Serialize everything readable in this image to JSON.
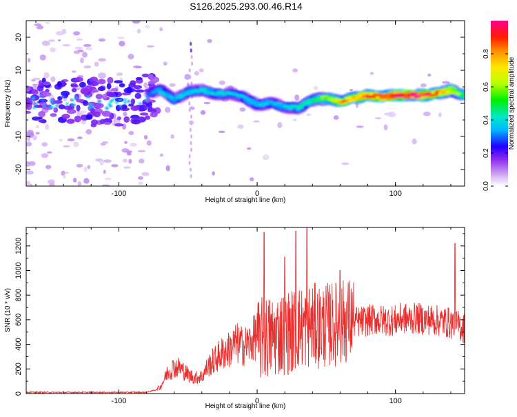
{
  "chart_data": [
    {
      "type": "heatmap",
      "title": "S126.2025.293.00.46.R14",
      "xlabel": "Height of straight line (km)",
      "ylabel": "Frequency (Hz)",
      "xlim": [
        -167,
        150
      ],
      "ylim": [
        -25,
        25
      ],
      "xticks": [
        -100,
        0,
        100
      ],
      "yticks": [
        -20,
        -10,
        0,
        10,
        20
      ],
      "colorbar": {
        "label": "Normalized spectral amplitude",
        "range": [
          0,
          1
        ],
        "ticks": [
          "0.0",
          "0.2",
          "0.4",
          "0.6",
          "0.8"
        ],
        "tick_values": [
          0.0,
          0.2,
          0.4,
          0.6,
          0.8
        ]
      },
      "ridge": {
        "description": "peak frequency track vs height",
        "x": [
          -167,
          -150,
          -130,
          -110,
          -90,
          -75,
          -70,
          -60,
          -50,
          -40,
          -30,
          -20,
          -10,
          0,
          10,
          20,
          30,
          40,
          50,
          60,
          70,
          80,
          90,
          100,
          110,
          120,
          130,
          140,
          148
        ],
        "y": [
          0.0,
          0.5,
          0.5,
          0.0,
          0.5,
          3.5,
          4.0,
          1.0,
          3.5,
          4.0,
          3.0,
          3.0,
          2.0,
          -0.5,
          0.0,
          -1.0,
          -1.5,
          1.0,
          1.5,
          0.5,
          1.5,
          2.5,
          2.0,
          2.5,
          2.5,
          2.5,
          3.0,
          4.0,
          2.5
        ],
        "amplitude": [
          0.15,
          0.15,
          0.15,
          0.15,
          0.15,
          0.25,
          0.3,
          0.28,
          0.3,
          0.3,
          0.3,
          0.3,
          0.28,
          0.3,
          0.3,
          0.3,
          0.35,
          0.4,
          0.55,
          0.7,
          0.75,
          0.8,
          0.85,
          0.9,
          0.9,
          0.85,
          0.75,
          0.6,
          0.45
        ]
      }
    },
    {
      "type": "line",
      "title": "",
      "xlabel": "Height of straight line (km)",
      "ylabel": "SNR (10 * v/v)",
      "xlim": [
        -167,
        150
      ],
      "ylim": [
        0,
        1350
      ],
      "xticks": [
        -100,
        0,
        100
      ],
      "yticks": [
        0,
        200,
        400,
        600,
        800,
        1000,
        1200
      ],
      "series": [
        {
          "name": "SNR",
          "color": "#e8302f",
          "x": [
            -167,
            -140,
            -110,
            -80,
            -70,
            -65,
            -60,
            -55,
            -50,
            -45,
            -40,
            -35,
            -30,
            -25,
            -20,
            -15,
            -10,
            -5,
            0,
            5,
            10,
            15,
            20,
            25,
            30,
            35,
            40,
            45,
            50,
            55,
            60,
            65,
            70,
            75,
            80,
            85,
            90,
            95,
            100,
            105,
            110,
            115,
            120,
            125,
            130,
            135,
            140,
            145,
            150
          ],
          "y": [
            10,
            10,
            10,
            10,
            40,
            130,
            170,
            160,
            120,
            100,
            110,
            180,
            220,
            260,
            280,
            320,
            300,
            320,
            380,
            420,
            420,
            450,
            460,
            470,
            500,
            510,
            520,
            510,
            520,
            530,
            540,
            560,
            570,
            570,
            580,
            590,
            580,
            580,
            580,
            600,
            590,
            600,
            590,
            590,
            580,
            570,
            560,
            540,
            520
          ],
          "spikes": [
            {
              "x": 5,
              "y": 1310
            },
            {
              "x": 20,
              "y": 1110
            },
            {
              "x": 28,
              "y": 1320
            },
            {
              "x": 36,
              "y": 1345
            },
            {
              "x": 60,
              "y": 1000
            },
            {
              "x": 143,
              "y": 1220
            }
          ]
        }
      ]
    }
  ]
}
